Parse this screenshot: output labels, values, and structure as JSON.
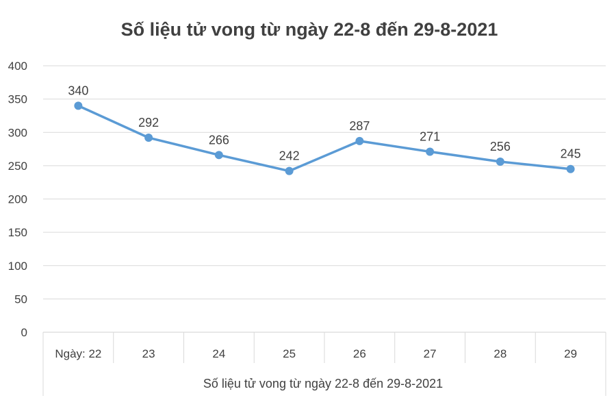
{
  "chart_data": {
    "type": "line",
    "title": "Số liệu tử vong từ ngày 22-8 đến 29-8-2021",
    "xlabel": "Số liệu tử vong từ ngày 22-8 đến 29-8-2021",
    "ylabel": "",
    "categories": [
      "Ngày: 22",
      "23",
      "24",
      "25",
      "26",
      "27",
      "28",
      "29"
    ],
    "series": [
      {
        "values": [
          340,
          292,
          266,
          242,
          287,
          271,
          256,
          245
        ]
      }
    ],
    "ylim": [
      0,
      400
    ],
    "yticks": [
      0,
      50,
      100,
      150,
      200,
      250,
      300,
      350,
      400
    ],
    "grid": true,
    "legend": "none",
    "data_labels": true,
    "colors": {
      "line": "#5b9bd5",
      "marker": "#5b9bd5",
      "grid": "#d9d9d9",
      "text": "#404040",
      "title": "#404040"
    }
  }
}
